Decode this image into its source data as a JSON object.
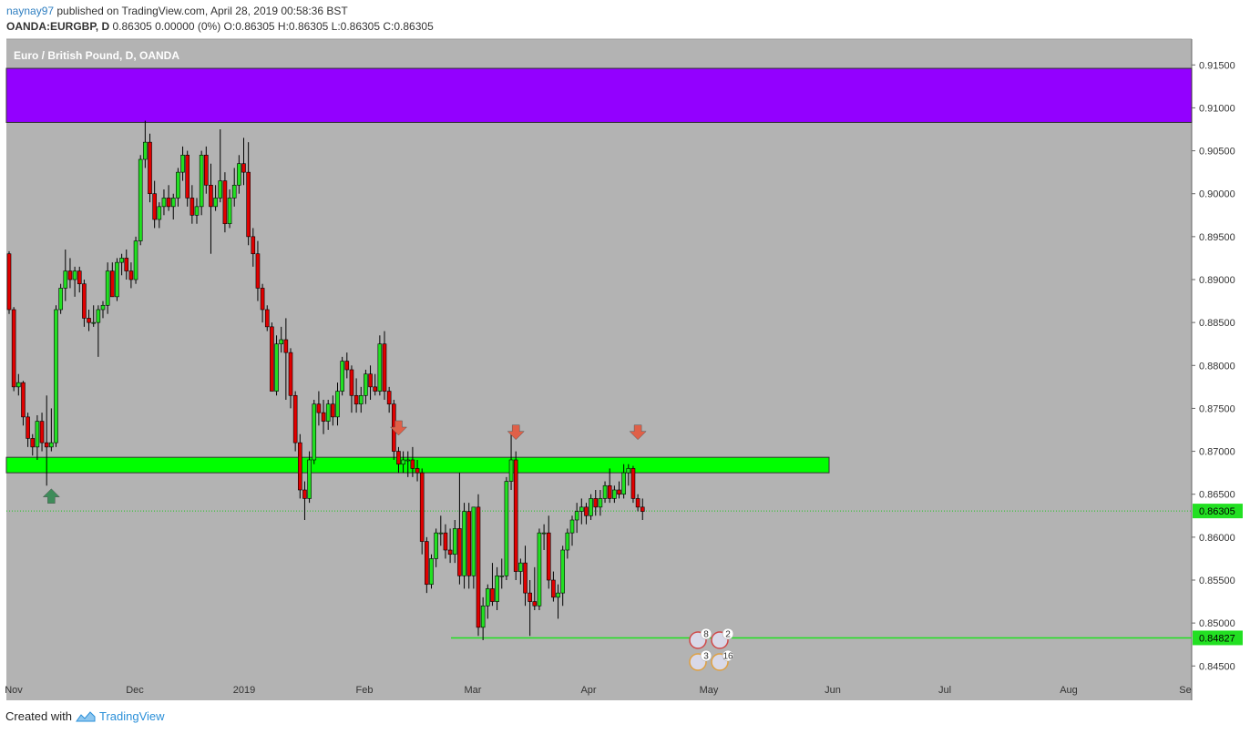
{
  "header": {
    "username": "naynay97",
    "published_text": " published on TradingView.com, April 28, 2019 00:58:36 BST",
    "symbol": "OANDA:EURGBP, D",
    "ohlc_text": "  0.86305 0.00000 (0%) O:0.86305 H:0.86305 L:0.86305 C:0.86305"
  },
  "footer": {
    "created_with": "Created with",
    "brand": "TradingView"
  },
  "colors": {
    "background": "#b3b3b3",
    "up": "#22e022",
    "down": "#e00000",
    "zone_purple": "#9300ff",
    "zone_green": "#00ff00",
    "arrow_red": "#e06048",
    "arrow_green": "#3e8c5a"
  },
  "chart_data": {
    "type": "candlestick",
    "title": "Euro / British Pound, D, OANDA",
    "ylim": [
      0.841,
      0.918
    ],
    "y_ticks": [
      "0.91500",
      "0.91000",
      "0.90500",
      "0.90000",
      "0.89500",
      "0.89000",
      "0.88500",
      "0.88000",
      "0.87500",
      "0.87000",
      "0.86500",
      "0.86000",
      "0.85500",
      "0.85000",
      "0.84500"
    ],
    "x_ticks": [
      "Nov",
      "Dec",
      "2019",
      "Feb",
      "Mar",
      "Apr",
      "May",
      "Jun",
      "Jul",
      "Aug",
      "Se"
    ],
    "current_price": "0.86305",
    "support_price": "0.84827",
    "zones": [
      {
        "name": "resistance-zone-purple",
        "from": 0.9083,
        "to": 0.9146
      },
      {
        "name": "key-level-zone-green",
        "from": 0.8675,
        "to": 0.8693
      }
    ],
    "candles": [
      {
        "o": 0.893,
        "h": 0.8933,
        "l": 0.886,
        "c": 0.8865
      },
      {
        "o": 0.8865,
        "h": 0.8868,
        "l": 0.877,
        "c": 0.8775
      },
      {
        "o": 0.8775,
        "h": 0.879,
        "l": 0.8765,
        "c": 0.878
      },
      {
        "o": 0.878,
        "h": 0.8782,
        "l": 0.873,
        "c": 0.874
      },
      {
        "o": 0.874,
        "h": 0.8745,
        "l": 0.8705,
        "c": 0.8715
      },
      {
        "o": 0.8715,
        "h": 0.872,
        "l": 0.8695,
        "c": 0.8705
      },
      {
        "o": 0.8705,
        "h": 0.8742,
        "l": 0.869,
        "c": 0.8735
      },
      {
        "o": 0.8735,
        "h": 0.8745,
        "l": 0.87,
        "c": 0.871
      },
      {
        "o": 0.871,
        "h": 0.8765,
        "l": 0.866,
        "c": 0.8705
      },
      {
        "o": 0.8705,
        "h": 0.875,
        "l": 0.87,
        "c": 0.871
      },
      {
        "o": 0.871,
        "h": 0.887,
        "l": 0.8705,
        "c": 0.8865
      },
      {
        "o": 0.8865,
        "h": 0.8895,
        "l": 0.886,
        "c": 0.889
      },
      {
        "o": 0.889,
        "h": 0.8935,
        "l": 0.8875,
        "c": 0.891
      },
      {
        "o": 0.891,
        "h": 0.8925,
        "l": 0.889,
        "c": 0.89
      },
      {
        "o": 0.89,
        "h": 0.8915,
        "l": 0.888,
        "c": 0.891
      },
      {
        "o": 0.891,
        "h": 0.8915,
        "l": 0.8885,
        "c": 0.8895
      },
      {
        "o": 0.8895,
        "h": 0.89,
        "l": 0.8845,
        "c": 0.8855
      },
      {
        "o": 0.8855,
        "h": 0.8865,
        "l": 0.884,
        "c": 0.885
      },
      {
        "o": 0.885,
        "h": 0.887,
        "l": 0.8845,
        "c": 0.885
      },
      {
        "o": 0.885,
        "h": 0.887,
        "l": 0.881,
        "c": 0.8865
      },
      {
        "o": 0.8865,
        "h": 0.8875,
        "l": 0.8855,
        "c": 0.887
      },
      {
        "o": 0.887,
        "h": 0.892,
        "l": 0.886,
        "c": 0.891
      },
      {
        "o": 0.891,
        "h": 0.892,
        "l": 0.888,
        "c": 0.888
      },
      {
        "o": 0.888,
        "h": 0.8925,
        "l": 0.8875,
        "c": 0.892
      },
      {
        "o": 0.892,
        "h": 0.893,
        "l": 0.8905,
        "c": 0.8925
      },
      {
        "o": 0.8925,
        "h": 0.8935,
        "l": 0.89,
        "c": 0.891
      },
      {
        "o": 0.891,
        "h": 0.892,
        "l": 0.889,
        "c": 0.89
      },
      {
        "o": 0.89,
        "h": 0.895,
        "l": 0.8895,
        "c": 0.8945
      },
      {
        "o": 0.8945,
        "h": 0.9045,
        "l": 0.894,
        "c": 0.904
      },
      {
        "o": 0.904,
        "h": 0.9085,
        "l": 0.903,
        "c": 0.906
      },
      {
        "o": 0.906,
        "h": 0.907,
        "l": 0.899,
        "c": 0.9
      },
      {
        "o": 0.9,
        "h": 0.9015,
        "l": 0.896,
        "c": 0.897
      },
      {
        "o": 0.897,
        "h": 0.899,
        "l": 0.896,
        "c": 0.8985
      },
      {
        "o": 0.8985,
        "h": 0.9005,
        "l": 0.8975,
        "c": 0.8995
      },
      {
        "o": 0.8995,
        "h": 0.901,
        "l": 0.898,
        "c": 0.8985
      },
      {
        "o": 0.8985,
        "h": 0.9,
        "l": 0.897,
        "c": 0.8995
      },
      {
        "o": 0.8995,
        "h": 0.903,
        "l": 0.8985,
        "c": 0.9025
      },
      {
        "o": 0.9025,
        "h": 0.9055,
        "l": 0.9015,
        "c": 0.9045
      },
      {
        "o": 0.9045,
        "h": 0.905,
        "l": 0.8985,
        "c": 0.8995
      },
      {
        "o": 0.8995,
        "h": 0.901,
        "l": 0.8965,
        "c": 0.8975
      },
      {
        "o": 0.8975,
        "h": 0.8995,
        "l": 0.8965,
        "c": 0.8985
      },
      {
        "o": 0.8985,
        "h": 0.905,
        "l": 0.8975,
        "c": 0.9045
      },
      {
        "o": 0.9045,
        "h": 0.9055,
        "l": 0.9,
        "c": 0.901
      },
      {
        "o": 0.901,
        "h": 0.9035,
        "l": 0.893,
        "c": 0.8985
      },
      {
        "o": 0.8985,
        "h": 0.901,
        "l": 0.898,
        "c": 0.8995
      },
      {
        "o": 0.8995,
        "h": 0.9075,
        "l": 0.899,
        "c": 0.9015
      },
      {
        "o": 0.9015,
        "h": 0.9025,
        "l": 0.8955,
        "c": 0.8965
      },
      {
        "o": 0.8965,
        "h": 0.9005,
        "l": 0.896,
        "c": 0.8995
      },
      {
        "o": 0.8995,
        "h": 0.903,
        "l": 0.8985,
        "c": 0.901
      },
      {
        "o": 0.901,
        "h": 0.9045,
        "l": 0.9,
        "c": 0.9035
      },
      {
        "o": 0.9035,
        "h": 0.9065,
        "l": 0.901,
        "c": 0.9025
      },
      {
        "o": 0.9025,
        "h": 0.906,
        "l": 0.894,
        "c": 0.895
      },
      {
        "o": 0.895,
        "h": 0.896,
        "l": 0.8915,
        "c": 0.893
      },
      {
        "o": 0.893,
        "h": 0.8945,
        "l": 0.8875,
        "c": 0.889
      },
      {
        "o": 0.889,
        "h": 0.8895,
        "l": 0.885,
        "c": 0.8865
      },
      {
        "o": 0.8865,
        "h": 0.887,
        "l": 0.884,
        "c": 0.8845
      },
      {
        "o": 0.8845,
        "h": 0.885,
        "l": 0.877,
        "c": 0.877
      },
      {
        "o": 0.877,
        "h": 0.8835,
        "l": 0.8765,
        "c": 0.8825
      },
      {
        "o": 0.8825,
        "h": 0.8845,
        "l": 0.8815,
        "c": 0.883
      },
      {
        "o": 0.883,
        "h": 0.8855,
        "l": 0.876,
        "c": 0.8815
      },
      {
        "o": 0.8815,
        "h": 0.882,
        "l": 0.875,
        "c": 0.8765
      },
      {
        "o": 0.8765,
        "h": 0.877,
        "l": 0.87,
        "c": 0.871
      },
      {
        "o": 0.871,
        "h": 0.872,
        "l": 0.8645,
        "c": 0.8655
      },
      {
        "o": 0.8655,
        "h": 0.8665,
        "l": 0.862,
        "c": 0.8645
      },
      {
        "o": 0.8645,
        "h": 0.87,
        "l": 0.864,
        "c": 0.869
      },
      {
        "o": 0.869,
        "h": 0.876,
        "l": 0.8685,
        "c": 0.8755
      },
      {
        "o": 0.8755,
        "h": 0.877,
        "l": 0.873,
        "c": 0.8745
      },
      {
        "o": 0.8745,
        "h": 0.876,
        "l": 0.872,
        "c": 0.8735
      },
      {
        "o": 0.8735,
        "h": 0.876,
        "l": 0.8725,
        "c": 0.8755
      },
      {
        "o": 0.8755,
        "h": 0.8765,
        "l": 0.873,
        "c": 0.874
      },
      {
        "o": 0.874,
        "h": 0.878,
        "l": 0.873,
        "c": 0.877
      },
      {
        "o": 0.877,
        "h": 0.881,
        "l": 0.8765,
        "c": 0.8805
      },
      {
        "o": 0.8805,
        "h": 0.8815,
        "l": 0.8785,
        "c": 0.8795
      },
      {
        "o": 0.8795,
        "h": 0.88,
        "l": 0.8745,
        "c": 0.8765
      },
      {
        "o": 0.8765,
        "h": 0.8785,
        "l": 0.8745,
        "c": 0.8755
      },
      {
        "o": 0.8755,
        "h": 0.8775,
        "l": 0.8745,
        "c": 0.8765
      },
      {
        "o": 0.8765,
        "h": 0.8795,
        "l": 0.8755,
        "c": 0.879
      },
      {
        "o": 0.879,
        "h": 0.88,
        "l": 0.876,
        "c": 0.8775
      },
      {
        "o": 0.8775,
        "h": 0.879,
        "l": 0.8765,
        "c": 0.877
      },
      {
        "o": 0.877,
        "h": 0.8835,
        "l": 0.8765,
        "c": 0.8825
      },
      {
        "o": 0.8825,
        "h": 0.884,
        "l": 0.876,
        "c": 0.877
      },
      {
        "o": 0.877,
        "h": 0.8775,
        "l": 0.8745,
        "c": 0.8755
      },
      {
        "o": 0.8755,
        "h": 0.876,
        "l": 0.869,
        "c": 0.87
      },
      {
        "o": 0.87,
        "h": 0.8705,
        "l": 0.8675,
        "c": 0.8685
      },
      {
        "o": 0.8685,
        "h": 0.87,
        "l": 0.8675,
        "c": 0.869
      },
      {
        "o": 0.869,
        "h": 0.87,
        "l": 0.867,
        "c": 0.869
      },
      {
        "o": 0.869,
        "h": 0.8705,
        "l": 0.867,
        "c": 0.868
      },
      {
        "o": 0.868,
        "h": 0.869,
        "l": 0.8665,
        "c": 0.8675
      },
      {
        "o": 0.8675,
        "h": 0.868,
        "l": 0.858,
        "c": 0.8595
      },
      {
        "o": 0.8595,
        "h": 0.86,
        "l": 0.8535,
        "c": 0.8545
      },
      {
        "o": 0.8545,
        "h": 0.858,
        "l": 0.854,
        "c": 0.8575
      },
      {
        "o": 0.8575,
        "h": 0.861,
        "l": 0.8565,
        "c": 0.8605
      },
      {
        "o": 0.8605,
        "h": 0.8625,
        "l": 0.859,
        "c": 0.8605
      },
      {
        "o": 0.8605,
        "h": 0.8615,
        "l": 0.8575,
        "c": 0.8585
      },
      {
        "o": 0.8585,
        "h": 0.861,
        "l": 0.857,
        "c": 0.858
      },
      {
        "o": 0.858,
        "h": 0.862,
        "l": 0.857,
        "c": 0.861
      },
      {
        "o": 0.861,
        "h": 0.8675,
        "l": 0.8545,
        "c": 0.8555
      },
      {
        "o": 0.8555,
        "h": 0.864,
        "l": 0.854,
        "c": 0.863
      },
      {
        "o": 0.863,
        "h": 0.864,
        "l": 0.854,
        "c": 0.8555
      },
      {
        "o": 0.8555,
        "h": 0.8635,
        "l": 0.854,
        "c": 0.8635
      },
      {
        "o": 0.8635,
        "h": 0.865,
        "l": 0.8485,
        "c": 0.8495
      },
      {
        "o": 0.8495,
        "h": 0.853,
        "l": 0.848,
        "c": 0.852
      },
      {
        "o": 0.852,
        "h": 0.8545,
        "l": 0.8505,
        "c": 0.854
      },
      {
        "o": 0.854,
        "h": 0.857,
        "l": 0.852,
        "c": 0.8525
      },
      {
        "o": 0.8525,
        "h": 0.8565,
        "l": 0.8515,
        "c": 0.8555
      },
      {
        "o": 0.8555,
        "h": 0.8575,
        "l": 0.854,
        "c": 0.8555
      },
      {
        "o": 0.8555,
        "h": 0.867,
        "l": 0.855,
        "c": 0.8665
      },
      {
        "o": 0.8665,
        "h": 0.872,
        "l": 0.8655,
        "c": 0.869
      },
      {
        "o": 0.869,
        "h": 0.87,
        "l": 0.855,
        "c": 0.856
      },
      {
        "o": 0.856,
        "h": 0.8575,
        "l": 0.8545,
        "c": 0.857
      },
      {
        "o": 0.857,
        "h": 0.859,
        "l": 0.852,
        "c": 0.8535
      },
      {
        "o": 0.8535,
        "h": 0.855,
        "l": 0.8485,
        "c": 0.8525
      },
      {
        "o": 0.8525,
        "h": 0.8565,
        "l": 0.8515,
        "c": 0.852
      },
      {
        "o": 0.852,
        "h": 0.861,
        "l": 0.8515,
        "c": 0.8605
      },
      {
        "o": 0.8605,
        "h": 0.8615,
        "l": 0.8585,
        "c": 0.8605
      },
      {
        "o": 0.8605,
        "h": 0.8625,
        "l": 0.854,
        "c": 0.855
      },
      {
        "o": 0.855,
        "h": 0.856,
        "l": 0.8525,
        "c": 0.853
      },
      {
        "o": 0.853,
        "h": 0.8545,
        "l": 0.8505,
        "c": 0.8535
      },
      {
        "o": 0.8535,
        "h": 0.859,
        "l": 0.852,
        "c": 0.8585
      },
      {
        "o": 0.8585,
        "h": 0.861,
        "l": 0.8575,
        "c": 0.8605
      },
      {
        "o": 0.8605,
        "h": 0.8625,
        "l": 0.859,
        "c": 0.862
      },
      {
        "o": 0.862,
        "h": 0.864,
        "l": 0.8605,
        "c": 0.863
      },
      {
        "o": 0.863,
        "h": 0.8645,
        "l": 0.8615,
        "c": 0.8635
      },
      {
        "o": 0.8635,
        "h": 0.864,
        "l": 0.8615,
        "c": 0.8625
      },
      {
        "o": 0.8625,
        "h": 0.865,
        "l": 0.862,
        "c": 0.8645
      },
      {
        "o": 0.8645,
        "h": 0.8655,
        "l": 0.8625,
        "c": 0.8635
      },
      {
        "o": 0.8635,
        "h": 0.8655,
        "l": 0.8625,
        "c": 0.8645
      },
      {
        "o": 0.8645,
        "h": 0.8665,
        "l": 0.864,
        "c": 0.866
      },
      {
        "o": 0.866,
        "h": 0.868,
        "l": 0.864,
        "c": 0.8645
      },
      {
        "o": 0.8645,
        "h": 0.866,
        "l": 0.864,
        "c": 0.8655
      },
      {
        "o": 0.8655,
        "h": 0.8665,
        "l": 0.8645,
        "c": 0.865
      },
      {
        "o": 0.865,
        "h": 0.8685,
        "l": 0.8645,
        "c": 0.8675
      },
      {
        "o": 0.8675,
        "h": 0.8685,
        "l": 0.866,
        "c": 0.868
      },
      {
        "o": 0.868,
        "h": 0.8683,
        "l": 0.864,
        "c": 0.8645
      },
      {
        "o": 0.8645,
        "h": 0.865,
        "l": 0.863,
        "c": 0.8635
      },
      {
        "o": 0.8635,
        "h": 0.8645,
        "l": 0.862,
        "c": 0.863
      }
    ],
    "annotations": [
      {
        "type": "arrow-up",
        "label": "green-up-arrow",
        "candle": 9,
        "price": 0.865
      },
      {
        "type": "arrow-down",
        "label": "red-down-arrow",
        "candle": 83,
        "price": 0.8725
      },
      {
        "type": "arrow-down",
        "label": "red-down-arrow",
        "candle": 108,
        "price": 0.872
      },
      {
        "type": "arrow-down",
        "label": "red-down-arrow",
        "candle": 134,
        "price": 0.872
      }
    ],
    "event_badges": [
      "8",
      "2",
      "3",
      "16"
    ]
  }
}
